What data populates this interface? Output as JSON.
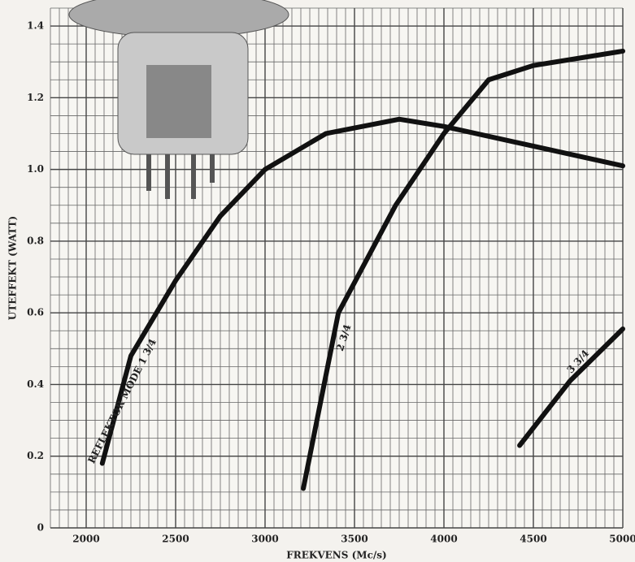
{
  "chart_data": {
    "type": "line",
    "x_label": "FREKVENS (Mc/s)",
    "y_label": "UTEFFEKT (WATT)",
    "xlim": [
      1800,
      5000
    ],
    "ylim": [
      0,
      1.45
    ],
    "xticks": [
      2000,
      2500,
      3000,
      3500,
      4000,
      4500,
      5000
    ],
    "yticks": [
      0,
      0.2,
      0.4,
      0.6,
      0.8,
      {
        "value": 1,
        "label": "1.0"
      },
      1.2,
      1.4
    ],
    "grid": true,
    "series": [
      {
        "name": "REFLEKTOR MODE 1 3/4",
        "color": "#111111",
        "x": [
          2090,
          2250,
          2500,
          2750,
          3000,
          3340,
          3750,
          4000,
          4500,
          5000
        ],
        "values": [
          0.18,
          0.48,
          0.69,
          0.87,
          1.0,
          1.1,
          1.14,
          1.12,
          1.065,
          1.01
        ]
      },
      {
        "name": "2 3/4",
        "color": "#111111",
        "x": [
          3214,
          3410,
          3730,
          4000,
          4250,
          4500,
          5000
        ],
        "values": [
          0.11,
          0.6,
          0.9,
          1.1,
          1.25,
          1.29,
          1.33
        ]
      },
      {
        "name": "3 3/4",
        "color": "#111111",
        "x": [
          4423,
          4705,
          5000
        ],
        "values": [
          0.23,
          0.41,
          0.555
        ]
      }
    ]
  }
}
